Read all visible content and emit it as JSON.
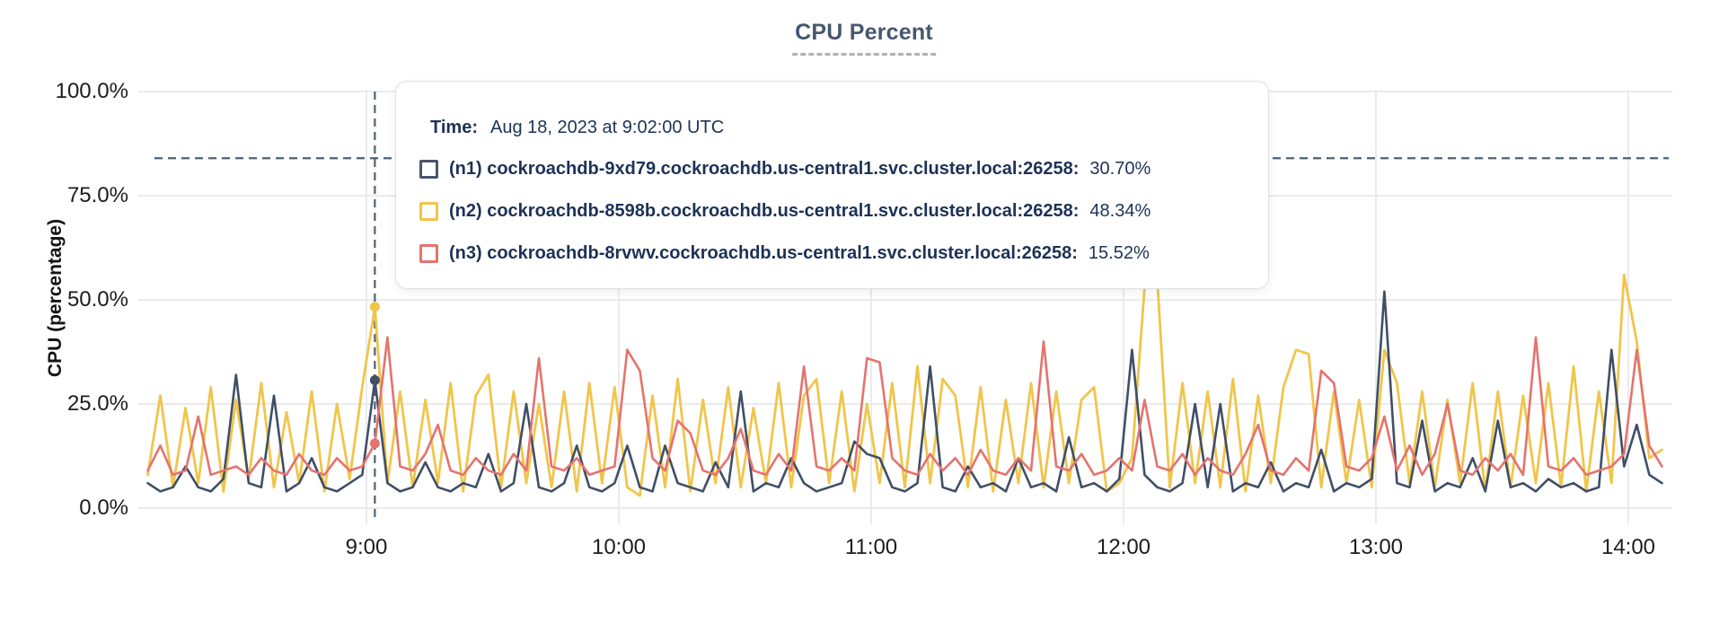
{
  "title": "CPU Percent",
  "y_axis": {
    "label": "CPU (percentage)",
    "ticks": [
      "100.0%",
      "75.0%",
      "50.0%",
      "25.0%",
      "0.0%"
    ],
    "tick_values": [
      100,
      75,
      50,
      25,
      0
    ]
  },
  "x_axis": {
    "ticks": [
      "9:00",
      "10:00",
      "11:00",
      "12:00",
      "13:00",
      "14:00"
    ],
    "start_time": "8:08",
    "end_time": "14:08"
  },
  "threshold_line": {
    "value_pct": 84,
    "color": "#4e6274",
    "style": "dashed"
  },
  "cursor": {
    "time": "9:02",
    "color": "#4e6274",
    "style": "dashed"
  },
  "tooltip": {
    "time_label": "Time:",
    "time_value": "Aug 18, 2023 at 9:02:00 UTC",
    "rows": [
      {
        "name": "(n1) cockroachdb-9xd79.cockroachdb.us-central1.svc.cluster.local:26258:",
        "value": "30.70%",
        "color": "#47566b"
      },
      {
        "name": "(n2) cockroachdb-8598b.cockroachdb.us-central1.svc.cluster.local:26258:",
        "value": "48.34%",
        "color": "#f0c54b"
      },
      {
        "name": "(n3) cockroachdb-8rvwv.cockroachdb.us-central1.svc.cluster.local:26258:",
        "value": "15.52%",
        "color": "#e4736e"
      }
    ]
  },
  "chart_data": {
    "type": "line",
    "title": "CPU Percent",
    "xlabel": "",
    "ylabel": "CPU (percentage)",
    "ylim": [
      0,
      100
    ],
    "x_start": "8:08",
    "x_step_min": 3,
    "x_hour_ticks": [
      "9:00",
      "10:00",
      "11:00",
      "12:00",
      "13:00",
      "14:00"
    ],
    "grid": true,
    "threshold_pct": 84,
    "cursor_time": "9:02",
    "series": [
      {
        "name": "(n1) cockroachdb-9xd79.cockroachdb.us-central1.svc.cluster.local:26258",
        "color": "#3f4f66",
        "cursor_value_pct": 30.7,
        "values": [
          6,
          4,
          5,
          10,
          5,
          4,
          7,
          32,
          6,
          5,
          27,
          4,
          6,
          12,
          5,
          4,
          6,
          8,
          30.7,
          6,
          4,
          5,
          11,
          5,
          4,
          6,
          5,
          13,
          4,
          6,
          25,
          5,
          4,
          6,
          15,
          5,
          4,
          6,
          15,
          5,
          4,
          15,
          6,
          5,
          4,
          11,
          5,
          28,
          4,
          6,
          5,
          12,
          6,
          4,
          5,
          6,
          16,
          13,
          12,
          5,
          4,
          6,
          34,
          5,
          4,
          10,
          5,
          6,
          4,
          12,
          5,
          6,
          4,
          17,
          5,
          6,
          4,
          7,
          38,
          8,
          5,
          4,
          6,
          25,
          5,
          25,
          4,
          6,
          5,
          11,
          4,
          6,
          5,
          14,
          4,
          6,
          5,
          7,
          52,
          6,
          5,
          21,
          4,
          6,
          5,
          12,
          4,
          21,
          5,
          6,
          4,
          7,
          5,
          6,
          4,
          5,
          38,
          10,
          20,
          8,
          6
        ]
      },
      {
        "name": "(n2) cockroachdb-8598b.cockroachdb.us-central1.svc.cluster.local:26258",
        "color": "#f0c54b",
        "cursor_value_pct": 48.34,
        "values": [
          8,
          27,
          5,
          24,
          6,
          29,
          4,
          26,
          7,
          30,
          5,
          23,
          6,
          28,
          4,
          25,
          7,
          29,
          48.3,
          6,
          28,
          5,
          26,
          6,
          30,
          4,
          27,
          32,
          5,
          28,
          6,
          25,
          5,
          28,
          4,
          30,
          6,
          29,
          5,
          3,
          27,
          5,
          31,
          4,
          26,
          6,
          29,
          5,
          24,
          6,
          30,
          5,
          27,
          31,
          6,
          28,
          4,
          25,
          6,
          30,
          5,
          34,
          6,
          31,
          27,
          5,
          29,
          4,
          26,
          6,
          30,
          5,
          28,
          6,
          26,
          29,
          4,
          6,
          12,
          53,
          55,
          5,
          30,
          6,
          28,
          5,
          31,
          4,
          27,
          6,
          29,
          38,
          37,
          5,
          28,
          6,
          26,
          5,
          38,
          30,
          6,
          28,
          5,
          26,
          6,
          30,
          4,
          28,
          5,
          27,
          6,
          30,
          5,
          34,
          4,
          28,
          6,
          56,
          40,
          12,
          14
        ]
      },
      {
        "name": "(n3) cockroachdb-8rvwv.cockroachdb.us-central1.svc.cluster.local:26258",
        "color": "#e4736e",
        "cursor_value_pct": 15.52,
        "values": [
          9,
          15,
          8,
          9,
          22,
          8,
          9,
          10,
          8,
          12,
          9,
          8,
          13,
          9,
          8,
          12,
          9,
          10,
          15.5,
          41,
          10,
          9,
          13,
          20,
          9,
          8,
          12,
          9,
          8,
          13,
          9,
          36,
          10,
          9,
          12,
          8,
          9,
          10,
          38,
          33,
          12,
          9,
          21,
          18,
          9,
          8,
          12,
          19,
          9,
          8,
          13,
          9,
          34,
          10,
          9,
          12,
          9,
          36,
          35,
          12,
          9,
          8,
          13,
          9,
          12,
          8,
          14,
          9,
          8,
          12,
          9,
          40,
          10,
          9,
          13,
          8,
          9,
          12,
          9,
          26,
          10,
          9,
          13,
          8,
          12,
          9,
          8,
          13,
          20,
          9,
          8,
          12,
          9,
          33,
          30,
          10,
          9,
          12,
          22,
          9,
          15,
          8,
          13,
          25,
          9,
          8,
          12,
          9,
          13,
          8,
          41,
          10,
          9,
          12,
          8,
          9,
          10,
          13,
          38,
          15,
          10
        ]
      }
    ]
  }
}
